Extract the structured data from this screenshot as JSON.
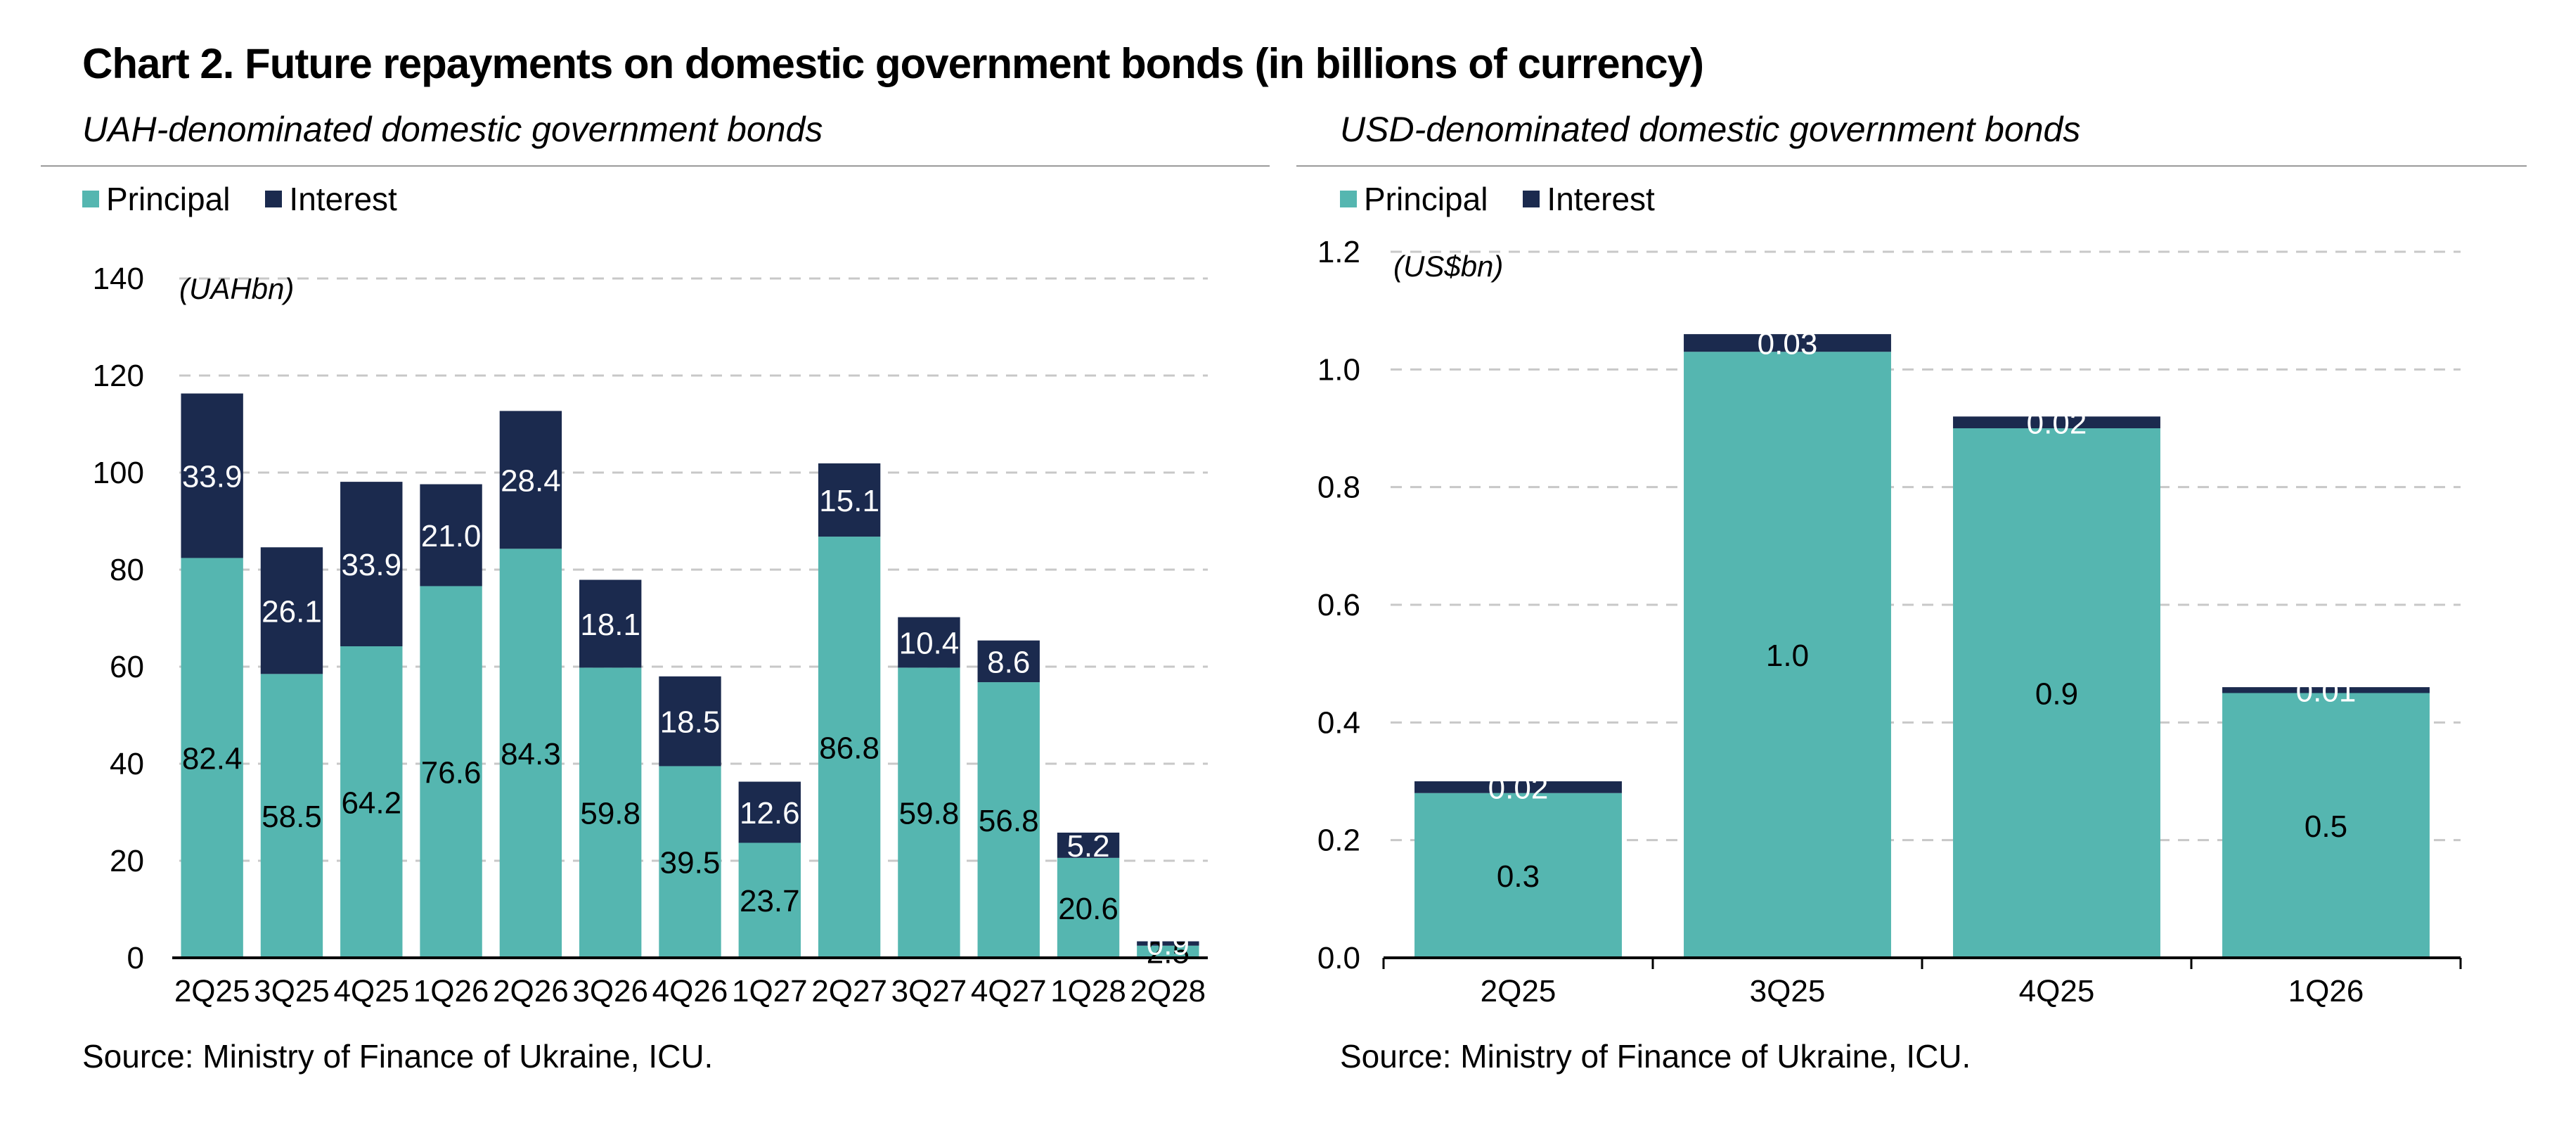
{
  "title": "Chart 2. Future repayments on domestic government bonds (in billions of currency)",
  "colors": {
    "principal": "#55b6b0",
    "interest": "#1b2a4e",
    "grid": "#c8c8c8"
  },
  "legend": {
    "principal": "Principal",
    "interest": "Interest"
  },
  "chart_data": [
    {
      "type": "bar",
      "stacked": true,
      "title": "UAH-denominated domestic government bonds",
      "unit_label": "(UAHbn)",
      "ylim": [
        0,
        140
      ],
      "yticks": [
        "0",
        "20",
        "40",
        "60",
        "80",
        "100",
        "120",
        "140"
      ],
      "categories": [
        "2Q25",
        "3Q25",
        "4Q25",
        "1Q26",
        "2Q26",
        "3Q26",
        "4Q26",
        "1Q27",
        "2Q27",
        "3Q27",
        "4Q27",
        "1Q28",
        "2Q28"
      ],
      "series": [
        {
          "name": "Principal",
          "values": [
            82.4,
            58.5,
            64.2,
            76.6,
            84.3,
            59.8,
            39.5,
            23.7,
            86.8,
            59.8,
            56.8,
            20.6,
            2.5
          ],
          "labels": [
            "82.4",
            "58.5",
            "64.2",
            "76.6",
            "84.3",
            "59.8",
            "39.5",
            "23.7",
            "86.8",
            "59.8",
            "56.8",
            "20.6",
            "2.5"
          ]
        },
        {
          "name": "Interest",
          "values": [
            33.9,
            26.1,
            33.9,
            21.0,
            28.4,
            18.1,
            18.5,
            12.6,
            15.1,
            10.4,
            8.6,
            5.2,
            0.9
          ],
          "labels": [
            "33.9",
            "26.1",
            "33.9",
            "21.0",
            "28.4",
            "18.1",
            "18.5",
            "12.6",
            "15.1",
            "10.4",
            "8.6",
            "5.2",
            "0.9"
          ]
        }
      ],
      "grid": true,
      "legend_position": "top-left",
      "source": "Source: Ministry of Finance of Ukraine, ICU."
    },
    {
      "type": "bar",
      "stacked": true,
      "title": "USD-denominated domestic government bonds",
      "unit_label": "(US$bn)",
      "ylim": [
        0,
        1.2
      ],
      "yticks": [
        "0.0",
        "0.2",
        "0.4",
        "0.6",
        "0.8",
        "1.0",
        "1.2"
      ],
      "categories": [
        "2Q25",
        "3Q25",
        "4Q25",
        "1Q26"
      ],
      "series": [
        {
          "name": "Principal",
          "values": [
            0.28,
            1.03,
            0.9,
            0.45
          ],
          "labels": [
            "0.3",
            "1.0",
            "0.9",
            "0.5"
          ]
        },
        {
          "name": "Interest",
          "values": [
            0.02,
            0.03,
            0.02,
            0.01
          ],
          "labels": [
            "0.02",
            "0.03",
            "0.02",
            "0.01"
          ]
        }
      ],
      "grid": true,
      "legend_position": "top-left",
      "source": "Source: Ministry of Finance of Ukraine, ICU."
    }
  ]
}
